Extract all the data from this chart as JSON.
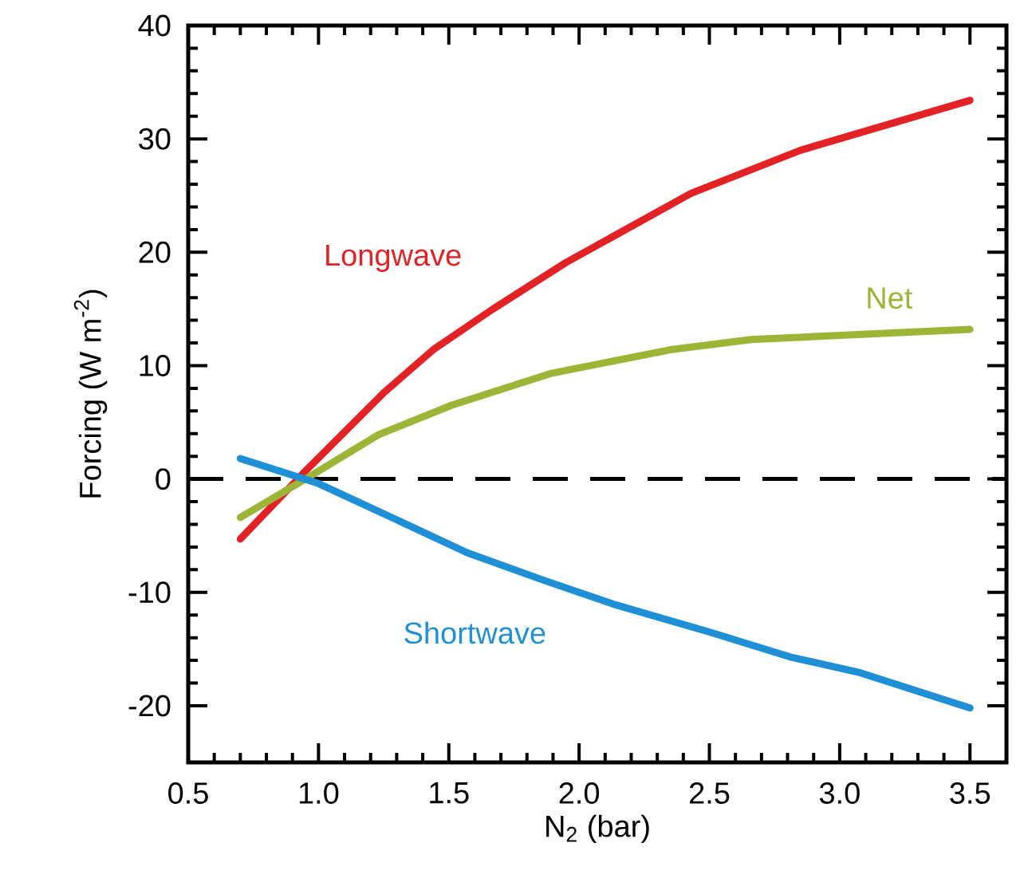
{
  "chart_data": {
    "type": "line",
    "xlabel": "N$_{2}$ (bar)",
    "ylabel": "Forcing (W m$^{-2}$)",
    "xlim": [
      0.5,
      3.64
    ],
    "ylim": [
      -25,
      40
    ],
    "xticks": [
      {
        "value": 0.5,
        "label": "0.5"
      },
      {
        "value": 1.0,
        "label": "1.0"
      },
      {
        "value": 1.5,
        "label": "1.5"
      },
      {
        "value": 2.0,
        "label": "2.0"
      },
      {
        "value": 2.5,
        "label": "2.5"
      },
      {
        "value": 3.0,
        "label": "3.0"
      },
      {
        "value": 3.5,
        "label": "3.5"
      }
    ],
    "yticks": [
      -20,
      -10,
      0,
      10,
      20,
      30,
      40
    ],
    "marker": "none",
    "line_style": "solid",
    "grid": false,
    "legend": false,
    "ref_lines": [
      {
        "axis": "y",
        "value": 0,
        "color": "#000000",
        "line_style": "dashed"
      }
    ],
    "series": [
      {
        "name": "Longwave",
        "color": "#e32226",
        "x": [
          0.7,
          0.95,
          1.25,
          1.44,
          1.67,
          1.95,
          2.43,
          2.85,
          3.5
        ],
        "values": [
          -5.3,
          0.7,
          7.6,
          11.4,
          15.0,
          19.1,
          25.2,
          29.0,
          33.4
        ]
      },
      {
        "name": "Net",
        "color": "#9cb536",
        "x": [
          0.7,
          0.95,
          1.23,
          1.51,
          1.89,
          2.35,
          2.66,
          3.5
        ],
        "values": [
          -3.4,
          0.0,
          3.9,
          6.5,
          9.3,
          11.4,
          12.3,
          13.2
        ]
      },
      {
        "name": "Shortwave",
        "color": "#1f8fd6",
        "x": [
          0.7,
          1.0,
          1.3,
          1.57,
          1.86,
          2.14,
          2.5,
          2.81,
          3.08,
          3.5
        ],
        "values": [
          1.8,
          -0.4,
          -3.6,
          -6.5,
          -8.9,
          -11.1,
          -13.5,
          -15.7,
          -17.1,
          -20.2
        ]
      }
    ]
  }
}
